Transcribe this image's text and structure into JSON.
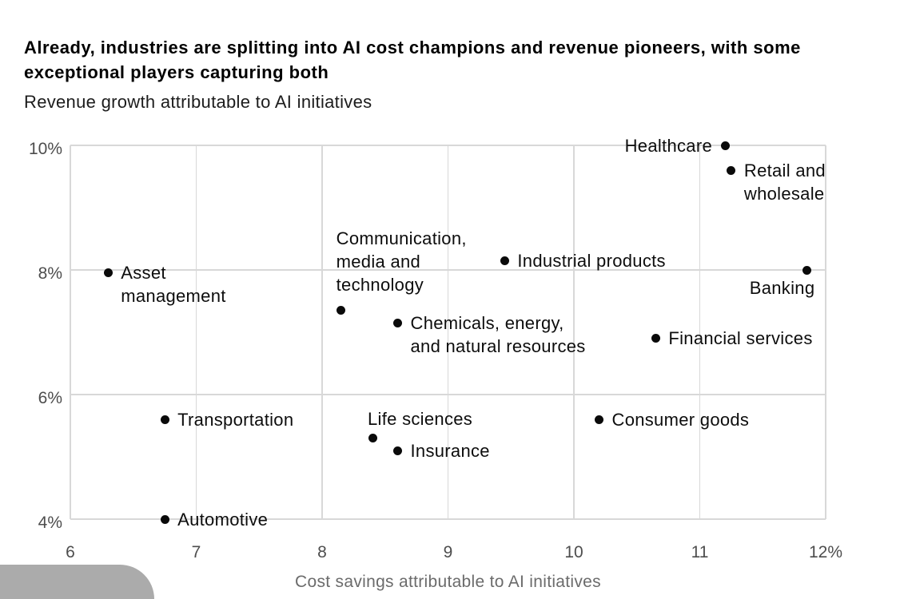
{
  "chart_data": {
    "type": "scatter",
    "title": "Already, industries are splitting into AI cost champions and revenue pioneers, with some exceptional players capturing both",
    "subtitle": "Revenue growth attributable to AI initiatives",
    "xlabel": "Cost savings attributable to AI initiatives",
    "ylabel": "Revenue growth attributable to AI initiatives",
    "xlim": [
      6,
      12
    ],
    "ylim": [
      4,
      10
    ],
    "grid": true,
    "legend": "none",
    "x_ticks": [
      {
        "value": 6,
        "label": "6"
      },
      {
        "value": 7,
        "label": "7"
      },
      {
        "value": 8,
        "label": "8"
      },
      {
        "value": 9,
        "label": "9"
      },
      {
        "value": 10,
        "label": "10"
      },
      {
        "value": 11,
        "label": "11"
      },
      {
        "value": 12,
        "label": "12%"
      }
    ],
    "y_ticks": [
      {
        "value": 4,
        "label": "4%"
      },
      {
        "value": 6,
        "label": "6%"
      },
      {
        "value": 8,
        "label": "8%"
      },
      {
        "value": 10,
        "label": "10%"
      }
    ],
    "points": [
      {
        "name": "Healthcare",
        "x": 11.2,
        "y": 10.0,
        "label": "Healthcare",
        "label_position": "left"
      },
      {
        "name": "Retail and wholesale",
        "x": 11.25,
        "y": 9.6,
        "label": "Retail and\nwholesale",
        "label_position": "right"
      },
      {
        "name": "Industrial products",
        "x": 9.45,
        "y": 8.15,
        "label": "Industrial products",
        "label_position": "right"
      },
      {
        "name": "Banking",
        "x": 11.85,
        "y": 8.0,
        "label": "Banking",
        "label_position": "below-left"
      },
      {
        "name": "Asset management",
        "x": 6.3,
        "y": 7.95,
        "label": "Asset\nmanagement",
        "label_position": "right"
      },
      {
        "name": "Communication, media and technology",
        "x": 8.15,
        "y": 7.35,
        "label": "Communication,\nmedia and\ntechnology",
        "label_position": "above",
        "label_dy": -8
      },
      {
        "name": "Chemicals, energy, and natural resources",
        "x": 8.6,
        "y": 7.15,
        "label": "Chemicals, energy,\nand natural resources",
        "label_position": "right"
      },
      {
        "name": "Financial services",
        "x": 10.65,
        "y": 6.9,
        "label": "Financial services",
        "label_position": "right"
      },
      {
        "name": "Consumer goods",
        "x": 10.2,
        "y": 5.6,
        "label": "Consumer goods",
        "label_position": "right"
      },
      {
        "name": "Transportation",
        "x": 6.75,
        "y": 5.6,
        "label": "Transportation",
        "label_position": "right"
      },
      {
        "name": "Life sciences",
        "x": 8.4,
        "y": 5.3,
        "label": "Life sciences",
        "label_position": "above"
      },
      {
        "name": "Insurance",
        "x": 8.6,
        "y": 5.1,
        "label": "Insurance",
        "label_position": "right"
      },
      {
        "name": "Automotive",
        "x": 6.75,
        "y": 4.0,
        "label": "Automotive",
        "label_position": "right"
      }
    ],
    "colors": {
      "point": "#0a0a0a",
      "label_text": "#0d0d0d",
      "gridline": "#d8d8d8",
      "tick_label": "#4d4d4d",
      "axis_title": "#6b6b6b"
    }
  },
  "overlay": {
    "corner_shape_color": "#ababab"
  }
}
